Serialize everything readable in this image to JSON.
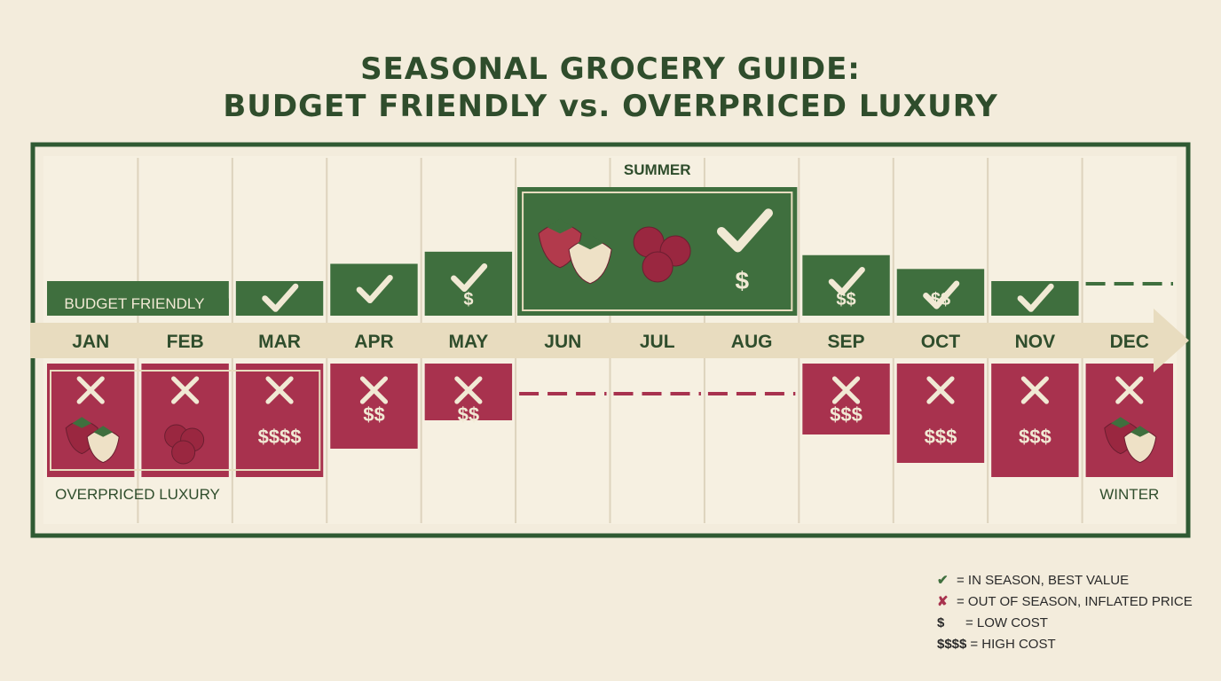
{
  "title_line1": "SEASONAL GROCERY GUIDE:",
  "title_line2": "BUDGET FRIENDLY vs. OVERPRICED LUXURY",
  "colors": {
    "background": "#f3ecdc",
    "frame": "#2f5a33",
    "budget_green": "#3f6f3e",
    "luxury_red": "#a8324e",
    "arrow": "#e8dcbf",
    "title": "#2f4d2c"
  },
  "chart_data": {
    "type": "bar",
    "categories": [
      "JAN",
      "FEB",
      "MAR",
      "APR",
      "MAY",
      "JUN",
      "JUL",
      "AUG",
      "SEP",
      "OCT",
      "NOV",
      "DEC"
    ],
    "upper_label": "BUDGET FRIENDLY",
    "lower_label": "OVERPRICED LUXURY",
    "season_labels": {
      "summer": "SUMMER",
      "winter": "WINTER"
    },
    "budget_friendly": [
      {
        "month": "JAN",
        "value": 1,
        "symbol": "",
        "check": false
      },
      {
        "month": "FEB",
        "value": 1,
        "symbol": "",
        "check": false
      },
      {
        "month": "MAR",
        "value": 2,
        "symbol": "",
        "check": true
      },
      {
        "month": "APR",
        "value": 3,
        "symbol": "",
        "check": true
      },
      {
        "month": "MAY",
        "value": 3.7,
        "symbol": "$",
        "check": true
      },
      {
        "month": "JUN",
        "value": 5,
        "symbol": "",
        "check": false
      },
      {
        "month": "JUL",
        "value": 5,
        "symbol": "",
        "check": false
      },
      {
        "month": "AUG",
        "value": 5,
        "symbol": "$",
        "check": true
      },
      {
        "month": "SEP",
        "value": 3.5,
        "symbol": "$$",
        "check": true
      },
      {
        "month": "OCT",
        "value": 2.7,
        "symbol": "$$",
        "check": true
      },
      {
        "month": "NOV",
        "value": 2,
        "symbol": "",
        "check": true
      },
      {
        "month": "DEC",
        "value": 0,
        "symbol": "",
        "check": false
      }
    ],
    "overpriced_luxury": [
      {
        "month": "JAN",
        "value": 4,
        "symbol": "",
        "cross": true
      },
      {
        "month": "FEB",
        "value": 4,
        "symbol": "",
        "cross": true
      },
      {
        "month": "MAR",
        "value": 4,
        "symbol": "$$$$",
        "cross": true
      },
      {
        "month": "APR",
        "value": 3,
        "symbol": "$$",
        "cross": true
      },
      {
        "month": "MAY",
        "value": 2,
        "symbol": "$$",
        "cross": true
      },
      {
        "month": "JUN",
        "value": 0,
        "symbol": "",
        "cross": false
      },
      {
        "month": "JUL",
        "value": 0,
        "symbol": "",
        "cross": false
      },
      {
        "month": "AUG",
        "value": 0,
        "symbol": "",
        "cross": false
      },
      {
        "month": "SEP",
        "value": 2.5,
        "symbol": "$$$",
        "cross": true
      },
      {
        "month": "OCT",
        "value": 3.5,
        "symbol": "$$$",
        "cross": true
      },
      {
        "month": "NOV",
        "value": 4,
        "symbol": "$$$",
        "cross": true
      },
      {
        "month": "DEC",
        "value": 4,
        "symbol": "",
        "cross": true
      }
    ]
  },
  "legend": [
    {
      "icon": "check-icon",
      "symbol": "✔",
      "text": "= IN SEASON, BEST VALUE"
    },
    {
      "icon": "cross-icon",
      "symbol": "✘",
      "text": "= OUT OF SEASON, INFLATED PRICE"
    },
    {
      "icon": "dollar-icon",
      "symbol": "$",
      "text": "= LOW COST"
    },
    {
      "icon": "dollar-icon",
      "symbol": "$$$$",
      "text": "= HIGH COST"
    }
  ]
}
